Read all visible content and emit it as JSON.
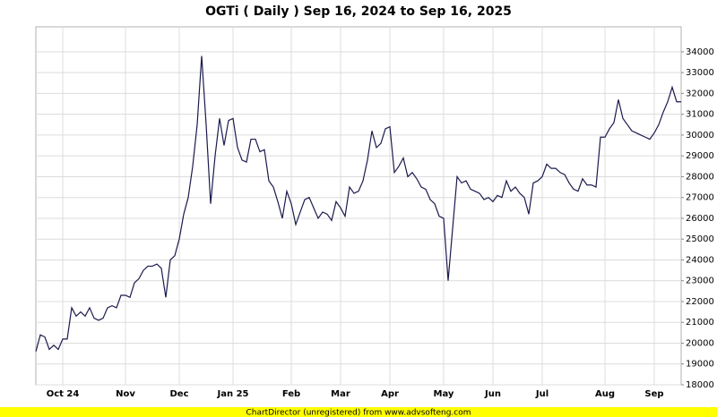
{
  "chart_data": {
    "type": "line",
    "title": "OGTi ( Daily ) Sep 16, 2024 to Sep 16, 2025",
    "footer": "ChartDirector (unregistered) from www.advsofteng.com",
    "categories": [
      null,
      null,
      null,
      null,
      null,
      null,
      "Oct 24",
      null,
      null,
      null,
      null,
      null,
      null,
      null,
      null,
      null,
      null,
      null,
      null,
      null,
      "Nov",
      null,
      null,
      null,
      null,
      null,
      null,
      null,
      null,
      null,
      null,
      null,
      "Dec",
      null,
      null,
      null,
      null,
      null,
      null,
      null,
      null,
      null,
      null,
      null,
      "Jan 25",
      null,
      null,
      null,
      null,
      null,
      null,
      null,
      null,
      null,
      null,
      null,
      null,
      "Feb",
      null,
      null,
      null,
      null,
      null,
      null,
      null,
      null,
      null,
      null,
      "Mar",
      null,
      null,
      null,
      null,
      null,
      null,
      null,
      null,
      null,
      null,
      "Apr",
      null,
      null,
      null,
      null,
      null,
      null,
      null,
      null,
      null,
      null,
      null,
      "May",
      null,
      null,
      null,
      null,
      null,
      null,
      null,
      null,
      null,
      null,
      "Jun",
      null,
      null,
      null,
      null,
      null,
      null,
      null,
      null,
      null,
      null,
      "Jul",
      null,
      null,
      null,
      null,
      null,
      null,
      null,
      null,
      null,
      null,
      null,
      null,
      null,
      "Aug",
      null,
      null,
      null,
      null,
      null,
      null,
      null,
      null,
      null,
      null,
      "Sep",
      null,
      null,
      null,
      null,
      null,
      null
    ],
    "series": [
      {
        "name": "OGTi",
        "color": "#1a1a4e",
        "values": [
          19600,
          20400,
          20300,
          19700,
          19900,
          19700,
          20200,
          20200,
          21700,
          21300,
          21500,
          21300,
          21700,
          21200,
          21100,
          21200,
          21700,
          21800,
          21700,
          22300,
          22300,
          22200,
          22900,
          23100,
          23500,
          23700,
          23700,
          23800,
          23600,
          22200,
          24000,
          24200,
          25000,
          26200,
          27000,
          28500,
          30500,
          33800,
          30500,
          26700,
          29000,
          30800,
          29500,
          30700,
          30800,
          29400,
          28800,
          28700,
          29800,
          29800,
          29200,
          29300,
          27800,
          27500,
          26800,
          26000,
          27300,
          26700,
          25700,
          26300,
          26900,
          27000,
          26500,
          26000,
          26300,
          26200,
          25900,
          26800,
          26500,
          26100,
          27500,
          27200,
          27300,
          27800,
          28800,
          30200,
          29400,
          29600,
          30300,
          30400,
          28200,
          28500,
          28900,
          28000,
          28200,
          27900,
          27500,
          27400,
          26900,
          26700,
          26100,
          26000,
          23000,
          25500,
          28000,
          27700,
          27800,
          27400,
          27300,
          27200,
          26900,
          27000,
          26800,
          27100,
          27000,
          27800,
          27300,
          27500,
          27200,
          27000,
          26200,
          27700,
          27800,
          28000,
          28600,
          28400,
          28400,
          28200,
          28100,
          27700,
          27400,
          27300,
          27900,
          27600,
          27600,
          27500,
          29900,
          29900,
          30300,
          30600,
          31700,
          30800,
          30500,
          30200,
          30100,
          30000,
          29900,
          29800,
          30100,
          30500,
          31100,
          31600,
          32300,
          31600,
          31600
        ]
      }
    ],
    "ylim": [
      18000,
      35200
    ],
    "yticks": [
      18000,
      19000,
      20000,
      21000,
      22000,
      23000,
      24000,
      25000,
      26000,
      27000,
      28000,
      29000,
      30000,
      31000,
      32000,
      33000,
      34000
    ],
    "grid": true
  }
}
